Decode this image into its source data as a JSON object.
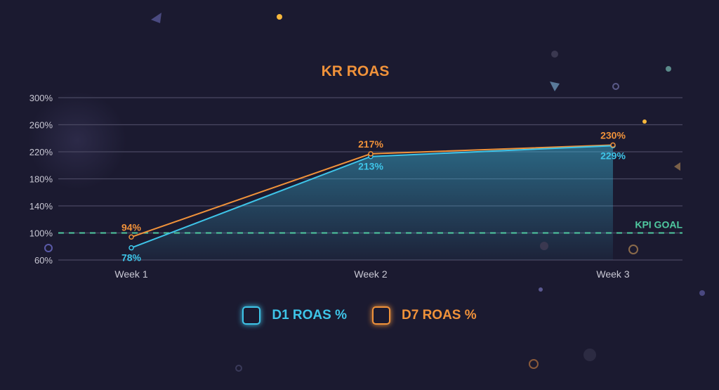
{
  "chart_data": {
    "type": "line",
    "title": "KR ROAS",
    "categories": [
      "Week 1",
      "Week 2",
      "Week 3"
    ],
    "series": [
      {
        "name": "D1 ROAS %",
        "values": [
          78,
          213,
          229
        ],
        "color": "#3ec4e8",
        "area": true
      },
      {
        "name": "D7 ROAS %",
        "values": [
          94,
          217,
          230
        ],
        "color": "#f0923a"
      }
    ],
    "data_labels": {
      "D1 ROAS %": [
        "78%",
        "213%",
        "229%"
      ],
      "D7 ROAS %": [
        "94%",
        "217%",
        "230%"
      ]
    },
    "yticks": [
      "300%",
      "260%",
      "220%",
      "180%",
      "140%",
      "100%",
      "60%"
    ],
    "ytick_values": [
      300,
      260,
      220,
      180,
      140,
      100,
      60
    ],
    "ylim": [
      60,
      300
    ],
    "grid": true,
    "reference_line": {
      "value": 100,
      "label": "KPI GOAL",
      "color": "#4fc9a0",
      "style": "dashed"
    },
    "legend_position": "bottom"
  }
}
